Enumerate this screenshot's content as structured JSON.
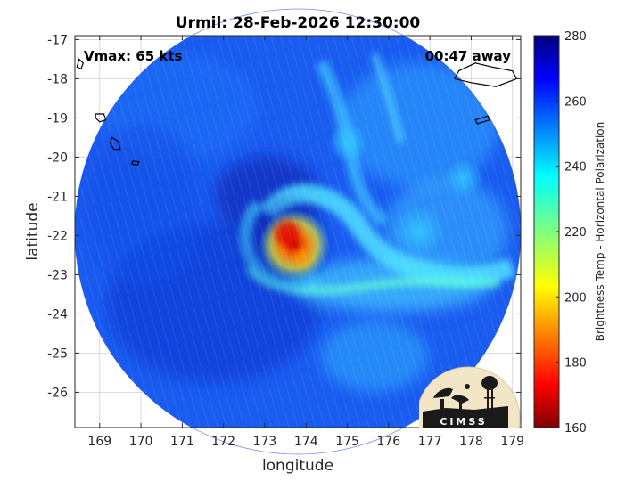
{
  "title": "Urmil: 28-Feb-2026 12:30:00",
  "annotations": {
    "vmax": "Vmax: 65 kts",
    "time_away": "00:47 away"
  },
  "logo_text": "CIMSS",
  "chart_data": {
    "type": "heatmap",
    "title": "Urmil: 28-Feb-2026 12:30:00",
    "xlabel": "longitude",
    "ylabel": "latitude",
    "xlim": [
      168.4,
      179.2
    ],
    "ylim": [
      -26.9,
      -16.9
    ],
    "x_ticks": [
      169,
      170,
      171,
      172,
      173,
      174,
      175,
      176,
      177,
      178,
      179
    ],
    "y_ticks": [
      -17,
      -18,
      -19,
      -20,
      -21,
      -22,
      -23,
      -24,
      -25,
      -26
    ],
    "x_tick_labels": [
      "169",
      "170",
      "171",
      "172",
      "173",
      "174",
      "175",
      "176",
      "177",
      "178",
      "179"
    ],
    "y_tick_labels": [
      "-17",
      "-18",
      "-19",
      "-20",
      "-21",
      "-22",
      "-23",
      "-24",
      "-25",
      "-26"
    ],
    "grid": true,
    "swath": {
      "center_lon": 173.8,
      "center_lat": -21.9,
      "radius_deg": 5.4
    },
    "storm_center": {
      "lon": 173.6,
      "lat": -22.1
    },
    "colorbar": {
      "label": "Brightness Temp - Horizontal Polarization",
      "range": [
        160,
        280
      ],
      "ticks": [
        160,
        180,
        200,
        220,
        240,
        260,
        280
      ],
      "tick_labels": [
        "160",
        "180",
        "200",
        "220",
        "240",
        "260",
        "280"
      ],
      "colormap": "jet"
    },
    "coastlines": [
      {
        "name": "island-nw",
        "points": [
          [
            168.5,
            -17.5
          ],
          [
            168.6,
            -17.6
          ],
          [
            168.55,
            -17.75
          ],
          [
            168.45,
            -17.7
          ]
        ]
      },
      {
        "name": "island-1",
        "points": [
          [
            168.9,
            -18.9
          ],
          [
            169.1,
            -18.9
          ],
          [
            169.15,
            -19.05
          ],
          [
            169.0,
            -19.1
          ],
          [
            168.9,
            -19.0
          ]
        ]
      },
      {
        "name": "island-2",
        "points": [
          [
            169.3,
            -19.5
          ],
          [
            169.45,
            -19.6
          ],
          [
            169.5,
            -19.8
          ],
          [
            169.35,
            -19.8
          ],
          [
            169.25,
            -19.65
          ]
        ]
      },
      {
        "name": "island-3",
        "points": [
          [
            169.8,
            -20.1
          ],
          [
            169.95,
            -20.12
          ],
          [
            169.92,
            -20.2
          ],
          [
            169.78,
            -20.18
          ]
        ]
      },
      {
        "name": "island-ne",
        "points": [
          [
            177.7,
            -17.8
          ],
          [
            178.1,
            -17.6
          ],
          [
            178.5,
            -17.7
          ],
          [
            179.0,
            -17.8
          ],
          [
            179.1,
            -18.0
          ],
          [
            178.6,
            -18.2
          ],
          [
            178.0,
            -18.1
          ],
          [
            177.6,
            -18.0
          ]
        ]
      },
      {
        "name": "island-e",
        "points": [
          [
            178.1,
            -19.05
          ],
          [
            178.4,
            -18.95
          ],
          [
            178.45,
            -19.05
          ],
          [
            178.15,
            -19.15
          ]
        ]
      }
    ]
  }
}
